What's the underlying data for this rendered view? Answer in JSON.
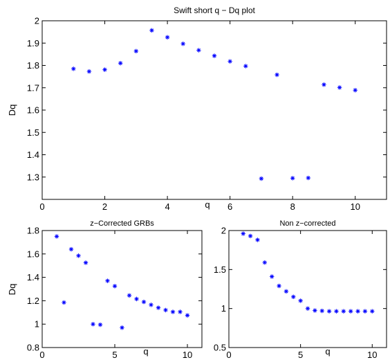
{
  "chart_data": [
    {
      "type": "scatter",
      "title": "Swift short q − Dq plot",
      "xlabel": "q",
      "ylabel": "Dq",
      "xlim": [
        0,
        11
      ],
      "ylim": [
        1.2,
        2.0
      ],
      "xticks": [
        0,
        2,
        4,
        6,
        8,
        10
      ],
      "yticks": [
        1.3,
        1.4,
        1.5,
        1.6,
        1.7,
        1.8,
        1.9,
        2
      ],
      "series": [
        {
          "color": "#0000ff",
          "marker": "*",
          "x": [
            1,
            1.5,
            2,
            2.5,
            3,
            3.5,
            4,
            4.5,
            5,
            5.5,
            6,
            6.5,
            7,
            7.5,
            8,
            8.5,
            9,
            9.5,
            10
          ],
          "y": [
            1.785,
            1.773,
            1.781,
            1.81,
            1.864,
            1.957,
            1.926,
            1.897,
            1.868,
            1.843,
            1.818,
            1.797,
            1.293,
            1.758,
            1.295,
            1.296,
            1.714,
            1.701,
            1.689
          ]
        }
      ]
    },
    {
      "type": "scatter",
      "title": "z−Corrected GRBs",
      "xlabel": "q",
      "ylabel": "Dq",
      "xlim": [
        0,
        11
      ],
      "ylim": [
        0.8,
        1.8
      ],
      "xticks": [
        0,
        5,
        10
      ],
      "yticks": [
        0.8,
        1,
        1.2,
        1.4,
        1.6,
        1.8
      ],
      "series": [
        {
          "color": "#0000ff",
          "marker": "*",
          "x": [
            1,
            1.5,
            2,
            2.5,
            3,
            3.5,
            4,
            4.5,
            5,
            5.5,
            6,
            6.5,
            7,
            7.5,
            8,
            8.5,
            9,
            9.5,
            10
          ],
          "y": [
            1.75,
            1.185,
            1.64,
            1.585,
            1.525,
            1.0,
            0.995,
            1.37,
            1.325,
            0.97,
            1.245,
            1.215,
            1.19,
            1.165,
            1.14,
            1.12,
            1.105,
            1.105,
            1.075
          ]
        }
      ]
    },
    {
      "type": "scatter",
      "title": "Non z−corrected",
      "xlabel": "q",
      "ylabel": "",
      "xlim": [
        0,
        11
      ],
      "ylim": [
        0.5,
        2.0
      ],
      "xticks": [
        0,
        5,
        10
      ],
      "yticks": [
        0.5,
        1,
        1.5,
        2
      ],
      "series": [
        {
          "color": "#0000ff",
          "marker": "*",
          "x": [
            1,
            1.5,
            2,
            2.5,
            3,
            3.5,
            4,
            4.5,
            5,
            5.5,
            6,
            6.5,
            7,
            7.5,
            8,
            8.5,
            9,
            9.5,
            10
          ],
          "y": [
            1.96,
            1.93,
            1.88,
            1.59,
            1.41,
            1.29,
            1.22,
            1.15,
            1.1,
            1.0,
            0.975,
            0.97,
            0.965,
            0.965,
            0.965,
            0.965,
            0.965,
            0.965,
            0.965
          ]
        }
      ]
    }
  ]
}
